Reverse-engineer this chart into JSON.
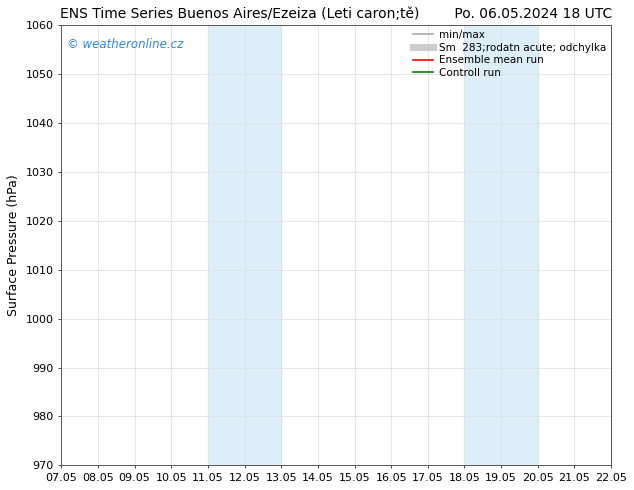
{
  "title": "ENS Time Series Buenos Aires/Ezeiza (Leti caron;tě)        Po. 06.05.2024 18 UTC",
  "ylabel": "Surface Pressure (hPa)",
  "ylim": [
    970,
    1060
  ],
  "yticks": [
    970,
    980,
    990,
    1000,
    1010,
    1020,
    1030,
    1040,
    1050,
    1060
  ],
  "x_start": 7.05,
  "x_end": 22.05,
  "xtick_labels": [
    "07.05",
    "08.05",
    "09.05",
    "10.05",
    "11.05",
    "12.05",
    "13.05",
    "14.05",
    "15.05",
    "16.05",
    "17.05",
    "18.05",
    "19.05",
    "20.05",
    "21.05",
    "22.05"
  ],
  "xtick_positions": [
    7.05,
    8.05,
    9.05,
    10.05,
    11.05,
    12.05,
    13.05,
    14.05,
    15.05,
    16.05,
    17.05,
    18.05,
    19.05,
    20.05,
    21.05,
    22.05
  ],
  "shaded_bands": [
    {
      "x_start": 11.05,
      "x_end": 13.05
    },
    {
      "x_start": 18.05,
      "x_end": 20.05
    }
  ],
  "shade_color": "#ddeef8",
  "watermark_text": "© weatheronline.cz",
  "watermark_color": "#3388cc",
  "legend_entries": [
    {
      "label": "min/max",
      "color": "#aaaaaa",
      "lw": 1.2,
      "ls": "-"
    },
    {
      "label": "Sm  283;rodatn acute; odchylka",
      "color": "#cccccc",
      "lw": 5,
      "ls": "-"
    },
    {
      "label": "Ensemble mean run",
      "color": "#ff0000",
      "lw": 1.2,
      "ls": "-"
    },
    {
      "label": "Controll run",
      "color": "#008800",
      "lw": 1.2,
      "ls": "-"
    }
  ],
  "bg_color": "#ffffff",
  "grid_color": "#dddddd",
  "title_fontsize": 10,
  "tick_fontsize": 8,
  "ylabel_fontsize": 9,
  "legend_fontsize": 7.5
}
